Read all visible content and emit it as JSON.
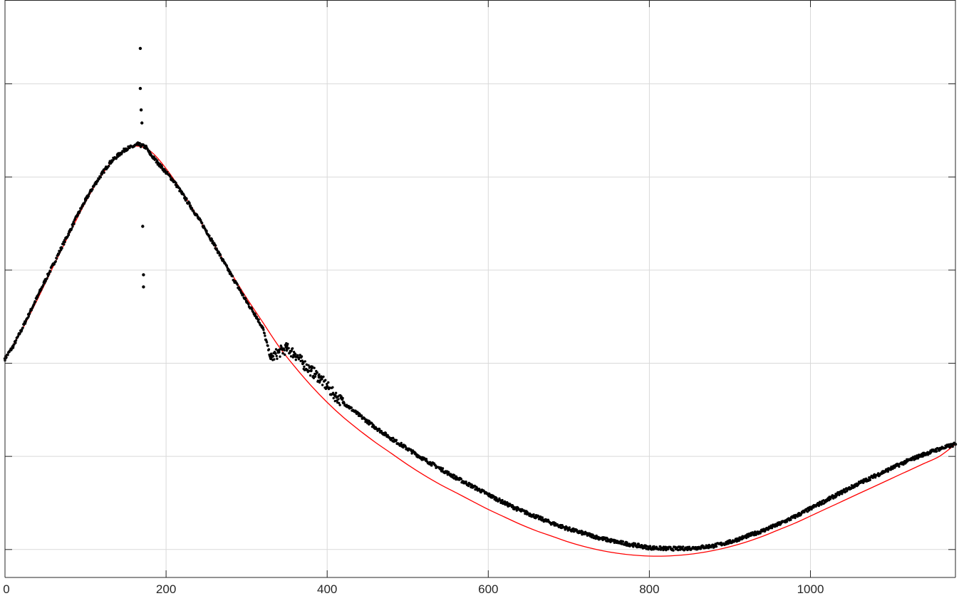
{
  "chart_data": {
    "type": "scatter",
    "title": "",
    "xlabel": "",
    "ylabel": "",
    "xlim": [
      0,
      1180
    ],
    "ylim": [
      0,
      6.2
    ],
    "grid": true,
    "x_ticks": [
      0,
      200,
      400,
      600,
      800,
      1000
    ],
    "x_tick_labels": [
      "0",
      "200",
      "400",
      "600",
      "800",
      "1000"
    ],
    "y_ticks": [
      0.3,
      1.3,
      2.3,
      3.3,
      4.3,
      5.3
    ],
    "y_tick_labels": [
      "",
      "",
      "",
      "",
      "",
      ""
    ],
    "colors": {
      "points": "#000000",
      "fit": "#ff0000",
      "grid": "#d9d9d9",
      "axes": "#262626"
    },
    "series": [
      {
        "kind": "points",
        "x": [
          0,
          10,
          20,
          30,
          40,
          50,
          60,
          70,
          80,
          90,
          100,
          110,
          120,
          130,
          140,
          150,
          160,
          165,
          175,
          180,
          190,
          200,
          210,
          220,
          230,
          240,
          250,
          260,
          270,
          280,
          290,
          300,
          310,
          320,
          330,
          340,
          350,
          360,
          370,
          380,
          390,
          400,
          410,
          420,
          440,
          460,
          480,
          500,
          520,
          540,
          560,
          580,
          600,
          620,
          640,
          660,
          680,
          700,
          720,
          740,
          760,
          780,
          800,
          820,
          840,
          860,
          880,
          900,
          920,
          940,
          960,
          980,
          1000,
          1020,
          1040,
          1060,
          1080,
          1100,
          1120,
          1140,
          1160,
          1180
        ],
        "y": [
          2.35,
          2.48,
          2.65,
          2.83,
          3.01,
          3.19,
          3.36,
          3.54,
          3.71,
          3.89,
          4.05,
          4.2,
          4.33,
          4.45,
          4.53,
          4.6,
          4.63,
          4.65,
          4.62,
          4.55,
          4.45,
          4.35,
          4.25,
          4.12,
          3.99,
          3.86,
          3.72,
          3.57,
          3.41,
          3.26,
          3.11,
          2.96,
          2.83,
          2.68,
          2.35,
          2.42,
          2.46,
          2.4,
          2.3,
          2.22,
          2.15,
          2.05,
          1.95,
          1.88,
          1.74,
          1.61,
          1.49,
          1.38,
          1.27,
          1.17,
          1.07,
          0.98,
          0.89,
          0.8,
          0.72,
          0.65,
          0.58,
          0.52,
          0.47,
          0.42,
          0.38,
          0.35,
          0.32,
          0.31,
          0.31,
          0.32,
          0.34,
          0.38,
          0.44,
          0.5,
          0.57,
          0.65,
          0.74,
          0.83,
          0.92,
          1.01,
          1.09,
          1.17,
          1.25,
          1.32,
          1.38,
          1.43
        ]
      },
      {
        "kind": "outliers",
        "x": [
          168,
          168,
          169,
          170,
          171,
          172,
          172
        ],
        "y": [
          5.68,
          5.25,
          5.02,
          4.88,
          3.77,
          3.25,
          3.12
        ]
      },
      {
        "kind": "fit",
        "x": [
          0,
          20,
          40,
          60,
          80,
          100,
          120,
          140,
          160,
          180,
          200,
          220,
          240,
          260,
          280,
          300,
          320,
          340,
          360,
          380,
          400,
          420,
          440,
          460,
          480,
          500,
          520,
          540,
          560,
          580,
          600,
          620,
          640,
          660,
          680,
          700,
          720,
          740,
          760,
          780,
          800,
          820,
          840,
          860,
          880,
          900,
          920,
          940,
          960,
          980,
          1000,
          1020,
          1040,
          1060,
          1080,
          1100,
          1120,
          1140,
          1160,
          1180
        ],
        "y": [
          2.35,
          2.64,
          2.98,
          3.34,
          3.69,
          4.03,
          4.32,
          4.53,
          4.63,
          4.58,
          4.39,
          4.14,
          3.86,
          3.57,
          3.28,
          3.0,
          2.74,
          2.48,
          2.26,
          2.06,
          1.88,
          1.72,
          1.58,
          1.45,
          1.33,
          1.21,
          1.1,
          1.0,
          0.91,
          0.82,
          0.73,
          0.65,
          0.57,
          0.5,
          0.44,
          0.38,
          0.33,
          0.29,
          0.26,
          0.24,
          0.23,
          0.23,
          0.24,
          0.26,
          0.29,
          0.33,
          0.38,
          0.44,
          0.51,
          0.58,
          0.66,
          0.74,
          0.82,
          0.9,
          0.98,
          1.06,
          1.14,
          1.22,
          1.3,
          1.43
        ]
      }
    ]
  }
}
